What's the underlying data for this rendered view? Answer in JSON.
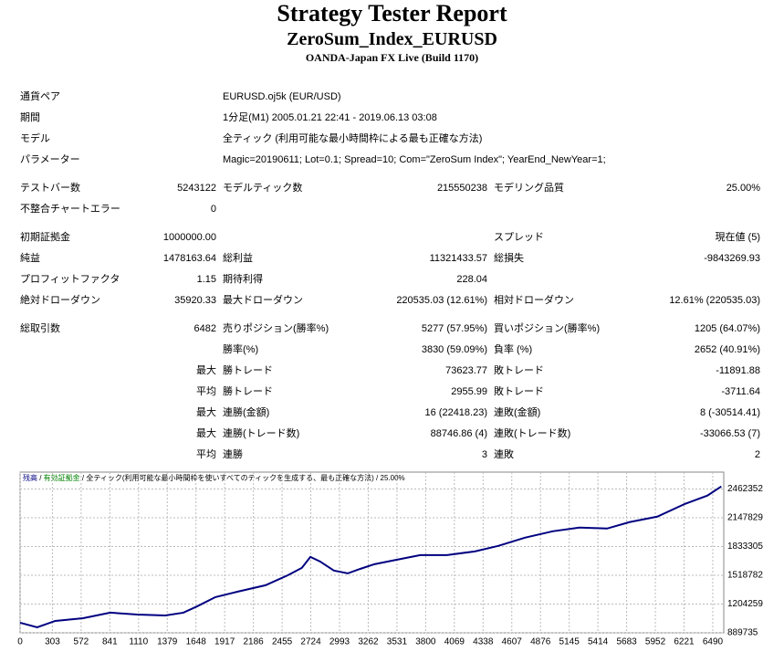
{
  "header": {
    "title": "Strategy Tester Report",
    "subtitle": "ZeroSum_Index_EURUSD",
    "build": "OANDA-Japan FX Live (Build 1170)"
  },
  "info": [
    {
      "label": "通貨ペア",
      "value": "EURUSD.oj5k (EUR/USD)"
    },
    {
      "label": "期間",
      "value": "1分足(M1) 2005.01.21 22:41 - 2019.06.13 03:08"
    },
    {
      "label": "モデル",
      "value": "全ティック (利用可能な最小時間枠による最も正確な方法)"
    },
    {
      "label": "パラメーター",
      "value": "Magic=20190611; Lot=0.1; Spread=10; Com=\"ZeroSum Index\"; YearEnd_NewYear=1;"
    }
  ],
  "stats": [
    [
      {
        "label": "テストバー数",
        "value": "5243122"
      },
      {
        "label": "モデルティック数",
        "value": "215550238"
      },
      {
        "label": "モデリング品質",
        "value": "25.00%"
      }
    ],
    [
      {
        "label": "不整合チャートエラー",
        "value": "0"
      },
      null,
      null
    ],
    [
      {
        "label": "初期証拠金",
        "value": "1000000.00"
      },
      null,
      {
        "label": "スプレッド",
        "value": "現在値 (5)"
      }
    ],
    [
      {
        "label": "純益",
        "value": "1478163.64"
      },
      {
        "label": "総利益",
        "value": "11321433.57"
      },
      {
        "label": "総損失",
        "value": "-9843269.93"
      }
    ],
    [
      {
        "label": "プロフィットファクタ",
        "value": "1.15"
      },
      {
        "label": "期待利得",
        "value": "228.04"
      },
      null
    ],
    [
      {
        "label": "絶対ドローダウン",
        "value": "35920.33"
      },
      {
        "label": "最大ドローダウン",
        "value": "220535.03 (12.61%)"
      },
      {
        "label": "相対ドローダウン",
        "value": "12.61% (220535.03)"
      }
    ],
    [
      {
        "label": "総取引数",
        "value": "6482"
      },
      {
        "label": "売りポジション(勝率%)",
        "value": "5277 (57.95%)"
      },
      {
        "label": "買いポジション(勝率%)",
        "value": "1205 (64.07%)"
      }
    ],
    [
      null,
      {
        "label": "勝率(%)",
        "value": "3830 (59.09%)"
      },
      {
        "label": "負率 (%)",
        "value": "2652 (40.91%)"
      }
    ],
    [
      {
        "value": "最大"
      },
      {
        "label": "勝トレード",
        "value": "73623.77"
      },
      {
        "label": "敗トレード",
        "value": "-11891.88"
      }
    ],
    [
      {
        "value": "平均"
      },
      {
        "label": "勝トレード",
        "value": "2955.99"
      },
      {
        "label": "敗トレード",
        "value": "-3711.64"
      }
    ],
    [
      {
        "value": "最大"
      },
      {
        "label": "連勝(金額)",
        "value": "16 (22418.23)"
      },
      {
        "label": "連敗(金額)",
        "value": "8 (-30514.41)"
      }
    ],
    [
      {
        "value": "最大"
      },
      {
        "label": "連勝(トレード数)",
        "value": "88746.86 (4)"
      },
      {
        "label": "連敗(トレード数)",
        "value": "-33066.53 (7)"
      }
    ],
    [
      {
        "value": "平均"
      },
      {
        "label": "連勝",
        "value": "3"
      },
      {
        "label": "連敗",
        "value": "2"
      }
    ]
  ],
  "chart_data": {
    "type": "line",
    "header_parts": [
      "有効証拠金",
      "全ティック(利用可能な最小時間枠を使いすべてのティックを生成する、最も正確な方法)",
      "25.00%"
    ],
    "x": [
      0,
      160,
      330,
      590,
      845,
      1100,
      1360,
      1530,
      1660,
      1830,
      2040,
      2300,
      2510,
      2640,
      2720,
      2810,
      2940,
      3070,
      3190,
      3320,
      3490,
      3750,
      4000,
      4260,
      4480,
      4730,
      4990,
      5240,
      5500,
      5710,
      5970,
      6230,
      6440,
      6570
    ],
    "series": [
      {
        "name": "残高",
        "color": "#000080",
        "values": [
          1000000,
          950000,
          1020000,
          1050000,
          1110000,
          1090000,
          1080000,
          1110000,
          1180000,
          1280000,
          1340000,
          1410000,
          1520000,
          1600000,
          1720000,
          1670000,
          1570000,
          1540000,
          1590000,
          1640000,
          1680000,
          1740000,
          1740000,
          1780000,
          1840000,
          1930000,
          2000000,
          2040000,
          2030000,
          2100000,
          2160000,
          2300000,
          2390000,
          2490000
        ]
      }
    ],
    "xlim": [
      0,
      6593
    ],
    "xticks": [
      0,
      303,
      572,
      841,
      1110,
      1379,
      1648,
      1917,
      2186,
      2455,
      2724,
      2993,
      3262,
      3531,
      3800,
      4069,
      4338,
      4607,
      4876,
      5145,
      5414,
      5683,
      5952,
      6221,
      6490
    ],
    "ylim": [
      889735,
      2647000
    ],
    "yticks": [
      889735,
      1204259,
      1518782,
      1833305,
      2147829,
      2462352
    ],
    "grid": true
  }
}
